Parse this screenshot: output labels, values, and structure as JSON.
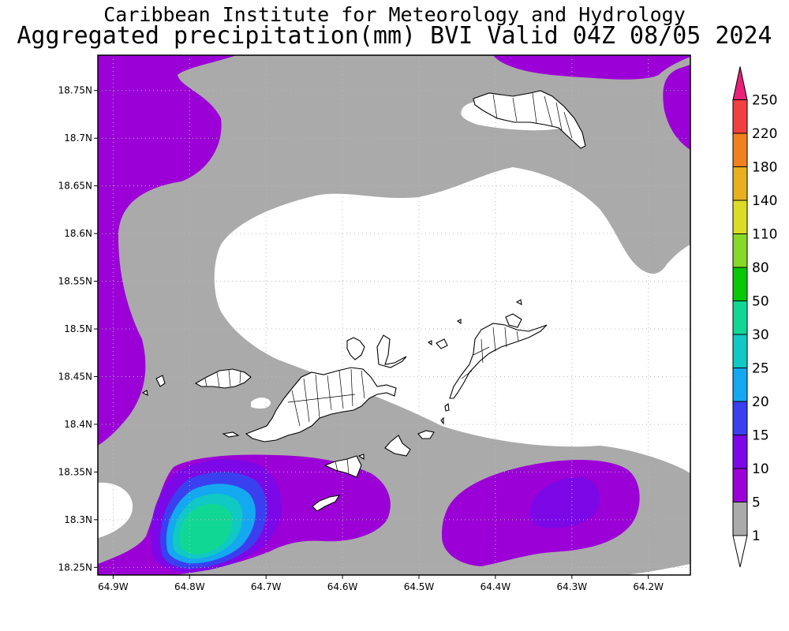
{
  "header": {
    "line1": "Caribbean Institute for Meteorology and Hydrology",
    "line2": "Aggregated precipitation(mm) BVI Valid 04Z 08/05 2024"
  },
  "map": {
    "lon_range": [
      -64.92,
      -64.145
    ],
    "lat_range": [
      18.242,
      18.787
    ],
    "x_ticks": [
      {
        "value": -64.9,
        "label": "64.9W"
      },
      {
        "value": -64.8,
        "label": "64.8W"
      },
      {
        "value": -64.7,
        "label": "64.7W"
      },
      {
        "value": -64.6,
        "label": "64.6W"
      },
      {
        "value": -64.5,
        "label": "64.5W"
      },
      {
        "value": -64.4,
        "label": "64.4W"
      },
      {
        "value": -64.3,
        "label": "64.3W"
      },
      {
        "value": -64.2,
        "label": "64.2W"
      }
    ],
    "y_ticks": [
      {
        "value": 18.25,
        "label": "18.25N"
      },
      {
        "value": 18.3,
        "label": "18.3N"
      },
      {
        "value": 18.35,
        "label": "18.35N"
      },
      {
        "value": 18.4,
        "label": "18.4N"
      },
      {
        "value": 18.45,
        "label": "18.45N"
      },
      {
        "value": 18.5,
        "label": "18.5N"
      },
      {
        "value": 18.55,
        "label": "18.55N"
      },
      {
        "value": 18.6,
        "label": "18.6N"
      },
      {
        "value": 18.65,
        "label": "18.65N"
      },
      {
        "value": 18.7,
        "label": "18.7N"
      },
      {
        "value": 18.75,
        "label": "18.75N"
      }
    ],
    "grid": true,
    "background_color": "#ffffff",
    "land_outline_color": "#000000",
    "regions": {
      "light_rain_color": "#aaaaaa",
      "rain_5_10_color": "#9b00d6",
      "rain_10_15_color": "#7c08e8",
      "rain_15_20_color": "#3a3ff0",
      "rain_20_25_color": "#14a8f0",
      "rain_25_30_color": "#10c8c4",
      "rain_30_50_color": "#10d894"
    }
  },
  "colorbar": {
    "levels": [
      {
        "label": "1",
        "color": "#aaaaaa"
      },
      {
        "label": "5",
        "color": "#9b00d6"
      },
      {
        "label": "10",
        "color": "#7c08e8"
      },
      {
        "label": "15",
        "color": "#3a3ff0"
      },
      {
        "label": "20",
        "color": "#14a8f0"
      },
      {
        "label": "25",
        "color": "#10c8c4"
      },
      {
        "label": "30",
        "color": "#10d894"
      },
      {
        "label": "50",
        "color": "#08c808"
      },
      {
        "label": "80",
        "color": "#88d828"
      },
      {
        "label": "110",
        "color": "#dcdc28"
      },
      {
        "label": "140",
        "color": "#e8b020"
      },
      {
        "label": "180",
        "color": "#f08020"
      },
      {
        "label": "220",
        "color": "#f04040"
      },
      {
        "label": "250",
        "color": "#e8207a"
      }
    ],
    "top_arrow_color": "#e8207a",
    "bottom_arrow_color": "#ffffff"
  }
}
